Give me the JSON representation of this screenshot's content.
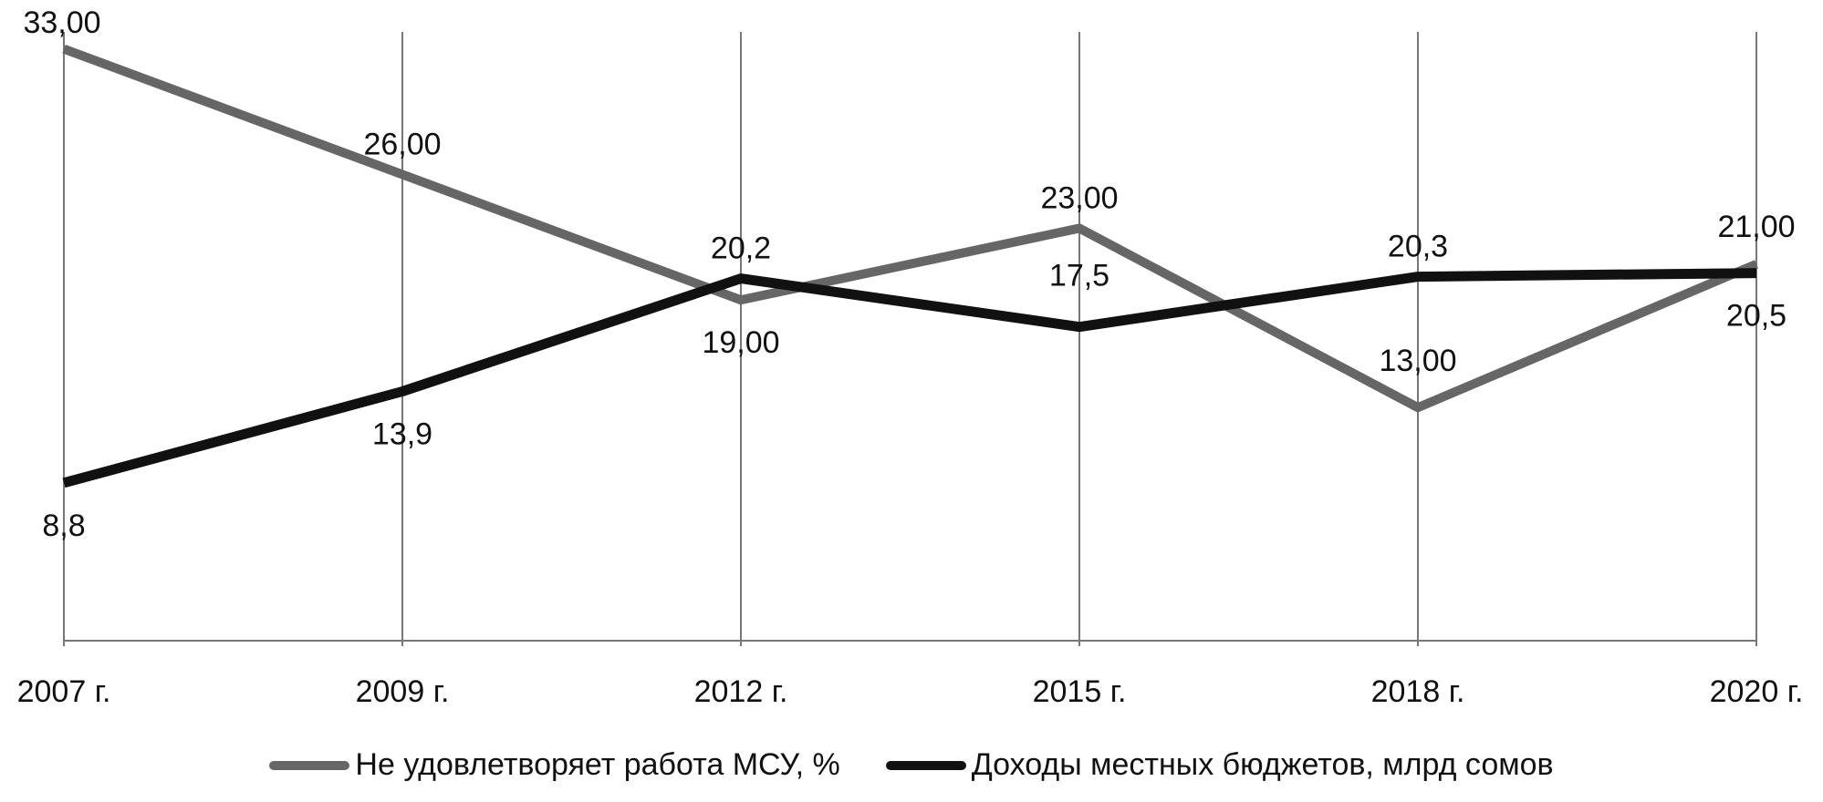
{
  "chart_data": {
    "type": "line",
    "categories": [
      "2007 г.",
      "2009 г.",
      "2012 г.",
      "2015 г.",
      "2018 г.",
      "2020 г."
    ],
    "series": [
      {
        "name": "Не удовлетворяет работа МСУ, %",
        "values": [
          33,
          26,
          19,
          23,
          13,
          21
        ],
        "labels": [
          "33,00",
          "26,00",
          "19,00",
          "23,00",
          "13,00",
          "21,00"
        ],
        "color": "#666666"
      },
      {
        "name": "Доходы местных бюджетов, млрд сомов",
        "values": [
          8.8,
          13.9,
          20.2,
          17.5,
          20.3,
          20.5
        ],
        "labels": [
          "8,8",
          "13,9",
          "20,2",
          "17,5",
          "20,3",
          "20,5"
        ],
        "color": "#111111"
      }
    ],
    "ylim": [
      0,
      34
    ],
    "grid": "vertical",
    "legend_position": "bottom"
  }
}
